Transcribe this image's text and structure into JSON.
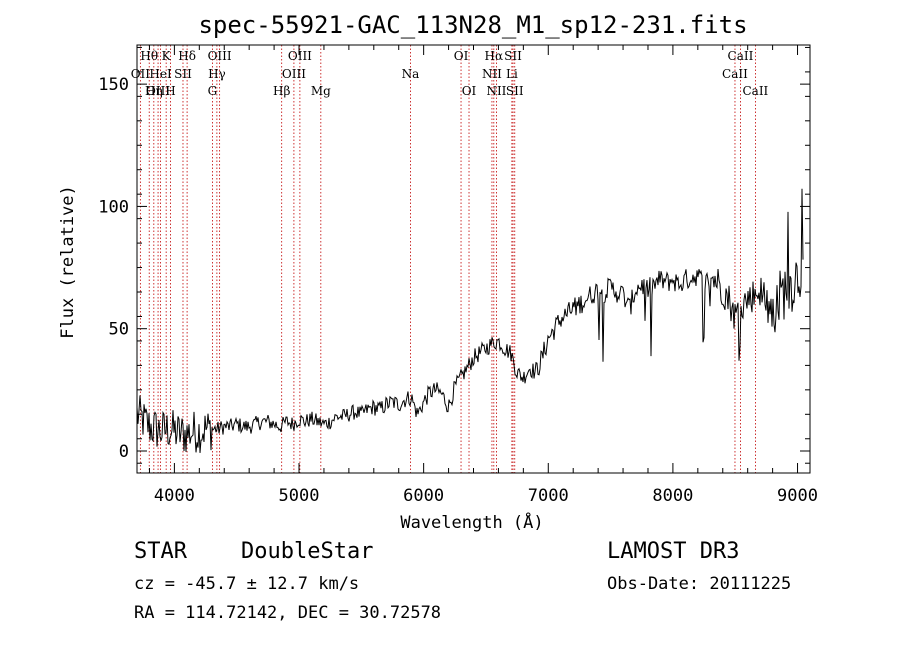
{
  "chart_data": {
    "type": "line",
    "title": "spec-55921-GAC_113N28_M1_sp12-231.fits",
    "xlabel": "Wavelength (Å)",
    "ylabel": "Flux (relative)",
    "xlim": [
      3700,
      9100
    ],
    "ylim": [
      -9,
      166
    ],
    "xticks": [
      4000,
      5000,
      6000,
      7000,
      8000,
      9000
    ],
    "yticks": [
      0,
      50,
      100,
      150
    ],
    "grid": false,
    "series": [
      {
        "name": "spectrum",
        "x": [
          3700,
          3760,
          3800,
          3850,
          3900,
          3950,
          4000,
          4050,
          4100,
          4150,
          4200,
          4250,
          4300,
          4350,
          4400,
          4450,
          4500,
          4550,
          4600,
          4650,
          4700,
          4750,
          4800,
          4850,
          4900,
          4950,
          5000,
          5050,
          5100,
          5150,
          5200,
          5250,
          5300,
          5350,
          5400,
          5450,
          5500,
          5550,
          5600,
          5650,
          5700,
          5750,
          5800,
          5850,
          5900,
          5950,
          6000,
          6050,
          6100,
          6150,
          6200,
          6250,
          6300,
          6350,
          6400,
          6450,
          6500,
          6550,
          6600,
          6650,
          6700,
          6750,
          6800,
          6850,
          6900,
          6950,
          7000,
          7050,
          7100,
          7150,
          7200,
          7250,
          7300,
          7350,
          7400,
          7450,
          7500,
          7550,
          7600,
          7650,
          7700,
          7750,
          7800,
          7850,
          7900,
          7950,
          8000,
          8050,
          8100,
          8150,
          8200,
          8250,
          8300,
          8350,
          8400,
          8450,
          8500,
          8550,
          8600,
          8650,
          8700,
          8750,
          8800,
          8850,
          8900,
          8950,
          9000,
          9050
        ],
        "y": [
          15,
          12,
          10,
          9,
          8,
          9,
          8,
          7,
          7,
          8,
          8,
          9,
          9,
          9,
          10,
          10,
          11,
          10,
          10,
          11,
          12,
          12,
          11,
          10,
          12,
          11,
          13,
          12,
          13,
          12,
          11,
          12,
          14,
          14,
          15,
          16,
          15,
          17,
          18,
          17,
          19,
          20,
          19,
          21,
          22,
          15,
          20,
          24,
          25,
          23,
          18,
          26,
          30,
          34,
          38,
          40,
          42,
          44,
          45,
          42,
          40,
          32,
          30,
          34,
          32,
          38,
          46,
          50,
          54,
          56,
          58,
          60,
          62,
          64,
          66,
          65,
          67,
          65,
          64,
          58,
          66,
          68,
          66,
          68,
          70,
          69,
          70,
          68,
          70,
          71,
          72,
          68,
          71,
          70,
          66,
          62,
          55,
          60,
          62,
          64,
          66,
          60,
          58,
          62,
          66,
          68,
          72,
          75
        ]
      }
    ],
    "line_labels": [
      {
        "label": "Hθ",
        "x": 3798,
        "row": 0
      },
      {
        "label": "OII",
        "x": 3727,
        "row": 1
      },
      {
        "label": "OIII",
        "x": 3869,
        "row": 2
      },
      {
        "label": "K",
        "x": 3934,
        "row": 0
      },
      {
        "label": "HeI",
        "x": 3889,
        "row": 1
      },
      {
        "label": "Hη",
        "x": 3835,
        "row": 2
      },
      {
        "label": "SII",
        "x": 4069,
        "row": 1
      },
      {
        "label": "H",
        "x": 3969,
        "row": 2
      },
      {
        "label": "Hδ",
        "x": 4102,
        "row": 0
      },
      {
        "label": "OIII",
        "x": 4363,
        "row": 0
      },
      {
        "label": "Hγ",
        "x": 4341,
        "row": 1
      },
      {
        "label": "G",
        "x": 4305,
        "row": 2
      },
      {
        "label": "OIII",
        "x": 5007,
        "row": 0
      },
      {
        "label": "OIII",
        "x": 4959,
        "row": 1
      },
      {
        "label": "Hβ",
        "x": 4861,
        "row": 2
      },
      {
        "label": "Mg",
        "x": 5175,
        "row": 2
      },
      {
        "label": "Na",
        "x": 5894,
        "row": 1
      },
      {
        "label": "OI",
        "x": 6300,
        "row": 0
      },
      {
        "label": "OI",
        "x": 6364,
        "row": 2
      },
      {
        "label": "Hα",
        "x": 6563,
        "row": 0
      },
      {
        "label": "NII",
        "x": 6548,
        "row": 1
      },
      {
        "label": "NII",
        "x": 6584,
        "row": 2
      },
      {
        "label": "SII",
        "x": 6717,
        "row": 0
      },
      {
        "label": "Li",
        "x": 6708,
        "row": 1
      },
      {
        "label": "SII",
        "x": 6731,
        "row": 2
      },
      {
        "label": "CaII",
        "x": 8542,
        "row": 0
      },
      {
        "label": "CaII",
        "x": 8498,
        "row": 1
      },
      {
        "label": "CaII",
        "x": 8662,
        "row": 2
      }
    ]
  },
  "info": {
    "object_class": "STAR",
    "subclass": "DoubleStar",
    "survey": "LAMOST DR3",
    "redshift": "cz = -45.7 ± 12.7 km/s",
    "obs_date": "Obs-Date: 20111225",
    "coords": "RA = 114.72142, DEC =  30.72578"
  }
}
